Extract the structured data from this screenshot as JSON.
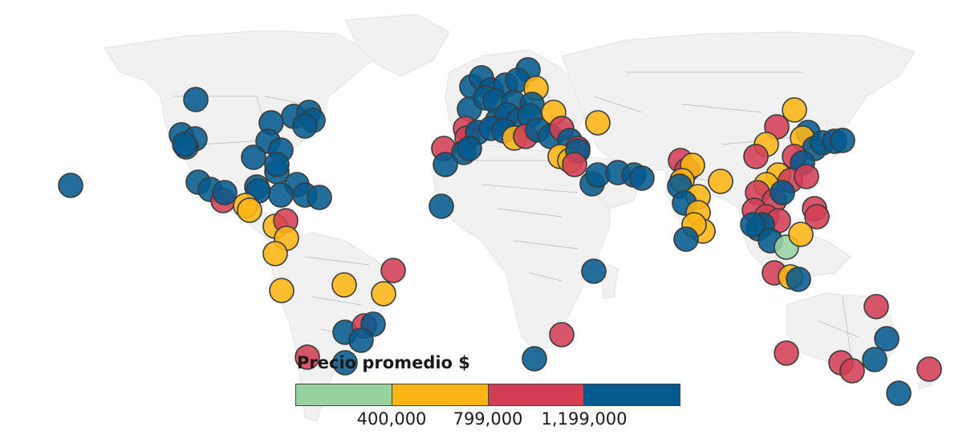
{
  "legend": {
    "title": "Precio promedio $",
    "thresholds": [
      "400,000",
      "799,000",
      "1,199,000"
    ],
    "bins": [
      "#97d1a0",
      "#fdb515",
      "#d23f54",
      "#045a8d"
    ]
  },
  "colors": {
    "land": "#f1f1f1",
    "border": "#b8b8b8",
    "green": "#97d1a0",
    "yellow": "#fdb515",
    "red": "#d23f54",
    "blue": "#045a8d"
  }
}
